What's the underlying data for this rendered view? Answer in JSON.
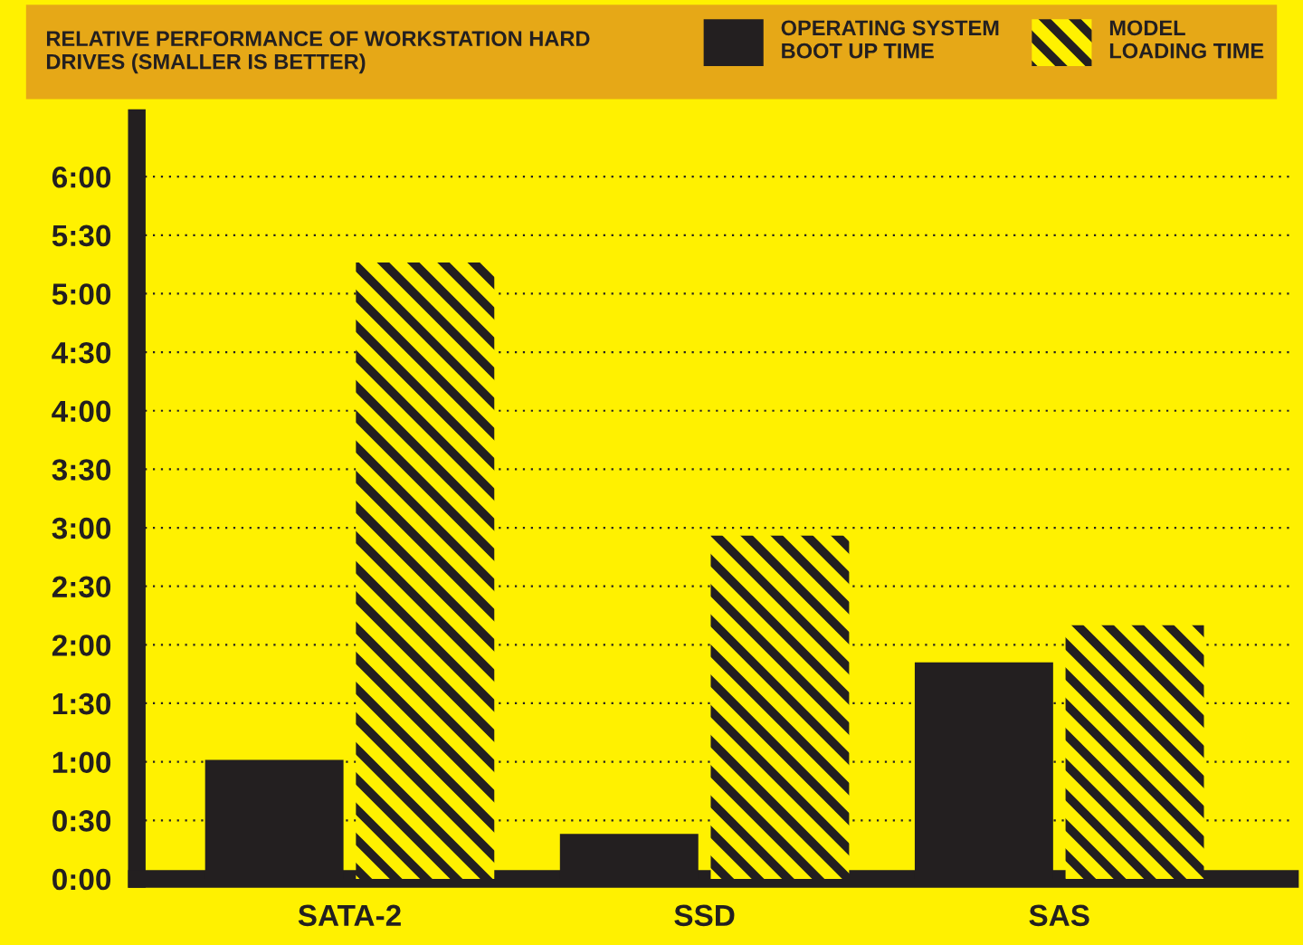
{
  "chart_data": {
    "type": "bar",
    "title": "RELATIVE PERFORMANCE OF WORKSTATION HARD\nDRIVES (SMALLER IS BETTER)",
    "categories": [
      "SATA-2",
      "SSD",
      "SAS"
    ],
    "series": [
      {
        "name": "OPERATING SYSTEM\nBOOT UP TIME",
        "color": "#231f20",
        "values": [
          61,
          23,
          111
        ]
      },
      {
        "name": "MODEL\nLOADING TIME",
        "color": "#fff100",
        "values": [
          316,
          176,
          130
        ]
      }
    ],
    "ylim": [
      0,
      390
    ],
    "yticks": [
      {
        "value": 0,
        "label": "0:00"
      },
      {
        "value": 30,
        "label": "0:30"
      },
      {
        "value": 60,
        "label": "1:00"
      },
      {
        "value": 90,
        "label": "1:30"
      },
      {
        "value": 120,
        "label": "2:00"
      },
      {
        "value": 150,
        "label": "2:30"
      },
      {
        "value": 180,
        "label": "3:00"
      },
      {
        "value": 210,
        "label": "3:30"
      },
      {
        "value": 240,
        "label": "4:00"
      },
      {
        "value": 270,
        "label": "4:30"
      },
      {
        "value": 300,
        "label": "5:00"
      },
      {
        "value": 330,
        "label": "5:30"
      },
      {
        "value": 360,
        "label": "6:00"
      }
    ],
    "grid": "y",
    "legend": "top"
  }
}
